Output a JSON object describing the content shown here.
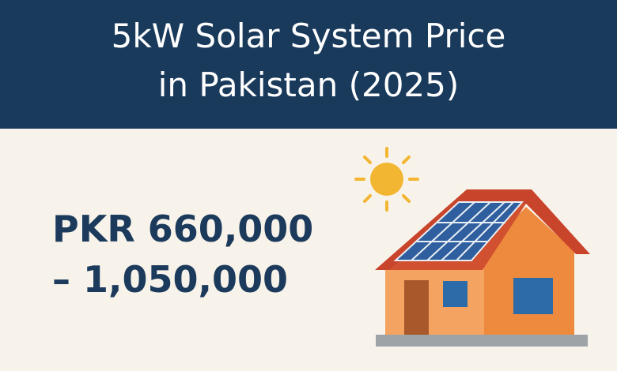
{
  "header": {
    "title_lines": [
      "5kW Solar System Price",
      "in Pakistan (2025)"
    ]
  },
  "price": {
    "lines": [
      "PKR 660,000",
      "– 1,050,000"
    ]
  }
}
